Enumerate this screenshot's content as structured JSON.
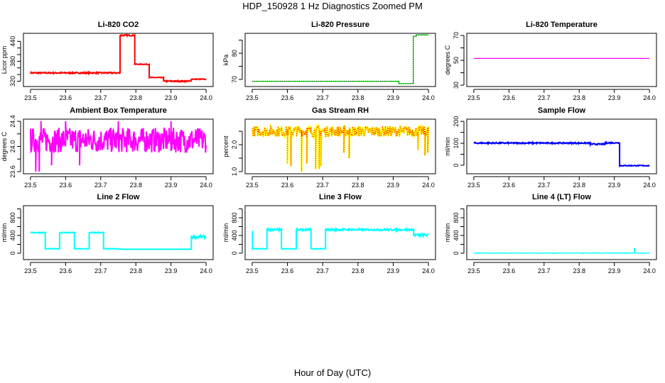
{
  "title": "HDP_150928  1 Hz Diagnostics Zoomed PM",
  "xlabel": "Hour of Day (UTC)",
  "chart_data": [
    {
      "type": "line",
      "title": "Li-820 CO2",
      "ylabel": "Licor ppm",
      "color": "#ff0000",
      "xlim": [
        23.5,
        24.0
      ],
      "ylim": [
        304,
        464
      ],
      "xticks": [
        23.5,
        23.6,
        23.7,
        23.8,
        23.9,
        24.0
      ],
      "yticks": [
        320,
        340,
        360,
        380,
        400,
        420,
        440
      ],
      "ytick_labels": [
        "320",
        "380",
        "440"
      ],
      "segments": [
        [
          23.5,
          23.755,
          345,
          2
        ],
        [
          23.755,
          23.797,
          458,
          2
        ],
        [
          23.797,
          23.838,
          371,
          1
        ],
        [
          23.838,
          23.879,
          331,
          1
        ],
        [
          23.879,
          23.957,
          320,
          2
        ],
        [
          23.957,
          24.0,
          326,
          1
        ]
      ]
    },
    {
      "type": "line",
      "title": "Li-820 Pressure",
      "ylabel": "kPa",
      "color": "#00ee00",
      "overlay_color": "#000000",
      "xlim": [
        23.5,
        24.0
      ],
      "ylim": [
        67.3,
        87.6
      ],
      "xticks": [
        23.5,
        23.6,
        23.7,
        23.8,
        23.9,
        24.0
      ],
      "yticks": [
        70,
        75,
        80,
        85
      ],
      "ytick_labels": [
        "70",
        "80"
      ],
      "segments": [
        [
          23.5,
          23.916,
          69.3,
          0
        ],
        [
          23.916,
          23.957,
          68.4,
          0
        ],
        [
          23.957,
          23.965,
          86.5,
          0
        ],
        [
          23.965,
          24.0,
          87.0,
          0
        ]
      ]
    },
    {
      "type": "line",
      "title": "Li-820 Temperature",
      "ylabel": "degrees C",
      "color": "#ff00ff",
      "xlim": [
        23.5,
        24.0
      ],
      "ylim": [
        28.9,
        71.7
      ],
      "xticks": [
        23.5,
        23.6,
        23.7,
        23.8,
        23.9,
        24.0
      ],
      "yticks": [
        30,
        40,
        50,
        60,
        70
      ],
      "ytick_labels": [
        "30",
        "50",
        "70"
      ],
      "segments": [
        [
          23.5,
          24.0,
          51.5,
          0
        ]
      ]
    },
    {
      "type": "line",
      "title": "Ambient Box Temperature",
      "ylabel": "degrees C",
      "color": "#ff00ff",
      "xlim": [
        23.5,
        24.0
      ],
      "ylim": [
        23.566,
        24.434
      ],
      "xticks": [
        23.5,
        23.6,
        23.7,
        23.8,
        23.9,
        24.0
      ],
      "yticks": [
        23.6,
        23.8,
        24.0,
        24.2,
        24.4
      ],
      "ytick_labels": [
        "23.6",
        "24.0",
        "24.4"
      ],
      "segments": [
        [
          23.5,
          24.0,
          24.1,
          0.2
        ]
      ],
      "spikes": [
        [
          23.515,
          23.6
        ],
        [
          23.525,
          23.6
        ],
        [
          23.56,
          23.7
        ],
        [
          23.64,
          23.7
        ],
        [
          23.53,
          24.4
        ],
        [
          23.6,
          24.4
        ],
        [
          23.75,
          24.4
        ],
        [
          23.9,
          24.4
        ]
      ]
    },
    {
      "type": "line",
      "title": "Gas Stream RH",
      "ylabel": "percent",
      "color": "#ffff00",
      "overlay_color": "#ff0000",
      "xlim": [
        23.5,
        24.0
      ],
      "ylim": [
        0.92,
        2.95
      ],
      "xticks": [
        23.5,
        23.6,
        23.7,
        23.8,
        23.9,
        24.0
      ],
      "yticks": [
        1.0,
        1.5,
        2.0,
        2.5
      ],
      "ytick_labels": [
        "1.0",
        "2.0"
      ],
      "segments": [
        [
          23.5,
          24.0,
          2.5,
          0.2
        ]
      ],
      "spikes": [
        [
          23.6,
          1.3
        ],
        [
          23.61,
          1.2
        ],
        [
          23.64,
          1.0
        ],
        [
          23.655,
          1.3
        ],
        [
          23.68,
          1.1
        ],
        [
          23.69,
          1.1
        ],
        [
          23.695,
          1.2
        ],
        [
          23.76,
          1.7
        ],
        [
          23.775,
          1.5
        ],
        [
          23.97,
          1.8
        ],
        [
          23.99,
          1.6
        ],
        [
          23.998,
          1.7
        ]
      ]
    },
    {
      "type": "line",
      "title": "Sample Flow",
      "ylabel": "ml/min",
      "color": "#0000ff",
      "xlim": [
        23.5,
        24.0
      ],
      "ylim": [
        -39,
        210
      ],
      "xticks": [
        23.5,
        23.6,
        23.7,
        23.8,
        23.9,
        24.0
      ],
      "yticks": [
        0,
        50,
        100,
        150,
        200
      ],
      "ytick_labels": [
        "0",
        "100",
        "200"
      ],
      "segments": [
        [
          23.5,
          23.832,
          101,
          3
        ],
        [
          23.832,
          23.875,
          96,
          3
        ],
        [
          23.875,
          23.915,
          102,
          3
        ],
        [
          23.915,
          24.0,
          -2,
          2
        ]
      ]
    },
    {
      "type": "line",
      "title": "Line 2 Flow",
      "ylabel": "ml/min",
      "color": "#00ffff",
      "xlim": [
        23.5,
        24.0
      ],
      "ylim": [
        -144,
        1072
      ],
      "xticks": [
        23.5,
        23.6,
        23.7,
        23.8,
        23.9,
        24.0
      ],
      "yticks": [
        0,
        200,
        400,
        600,
        800,
        1000
      ],
      "ytick_labels": [
        "0",
        "400",
        "800"
      ],
      "segments": [
        [
          23.5,
          23.542,
          465,
          10
        ],
        [
          23.542,
          23.583,
          100,
          5
        ],
        [
          23.583,
          23.625,
          465,
          10
        ],
        [
          23.625,
          23.667,
          100,
          5
        ],
        [
          23.667,
          23.708,
          465,
          10
        ],
        [
          23.708,
          23.75,
          100,
          5
        ],
        [
          23.75,
          23.958,
          90,
          0
        ],
        [
          23.958,
          24.0,
          370,
          30
        ]
      ]
    },
    {
      "type": "line",
      "title": "Line 3 Flow",
      "ylabel": "ml/min",
      "color": "#00ffff",
      "xlim": [
        23.5,
        24.0
      ],
      "ylim": [
        -144,
        1072
      ],
      "xticks": [
        23.5,
        23.6,
        23.7,
        23.8,
        23.9,
        24.0
      ],
      "yticks": [
        0,
        200,
        400,
        600,
        800,
        1000
      ],
      "ytick_labels": [
        "0",
        "400",
        "800"
      ],
      "segments": [
        [
          23.5,
          23.501,
          500,
          0
        ],
        [
          23.501,
          23.542,
          100,
          5
        ],
        [
          23.542,
          23.583,
          530,
          25
        ],
        [
          23.583,
          23.625,
          100,
          5
        ],
        [
          23.625,
          23.667,
          530,
          25
        ],
        [
          23.667,
          23.708,
          100,
          5
        ],
        [
          23.708,
          23.958,
          530,
          20
        ],
        [
          23.958,
          24.0,
          410,
          30
        ]
      ]
    },
    {
      "type": "line",
      "title": "Line 4 (LT) Flow",
      "ylabel": "ml/min",
      "color": "#00ffff",
      "xlim": [
        23.5,
        24.0
      ],
      "ylim": [
        -144,
        1072
      ],
      "xticks": [
        23.5,
        23.6,
        23.7,
        23.8,
        23.9,
        24.0
      ],
      "yticks": [
        0,
        200,
        400,
        600,
        800,
        1000
      ],
      "ytick_labels": [
        "0",
        "400",
        "800"
      ],
      "segments": [
        [
          23.5,
          24.0,
          2,
          6
        ]
      ],
      "spikes": [
        [
          23.957,
          120
        ],
        [
          23.958,
          120
        ]
      ]
    }
  ]
}
